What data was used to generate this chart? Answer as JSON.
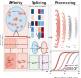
{
  "panel_titles": [
    "Affinity",
    "Splicing",
    "Processing"
  ],
  "title_fontsize": 2.5,
  "bg_left": "#fce8e3",
  "bg_mid": "#f7f7f7",
  "bg_right_top": "#e0f0f8",
  "speckle_fill": "#c5e3f5",
  "speckle_edge": "#90c0e0",
  "salmon": "#e88070",
  "dark_salmon": "#c05040",
  "light_salmon": "#f0b0a0",
  "gray_dark": "#666666",
  "gray_light": "#aaaaaa",
  "arrow_gray": "#888888",
  "curve1_color": "#c04030",
  "curve2_color": "#e09080",
  "curve3_color": "#909090",
  "curve4_color": "#b8b8b8",
  "funnel_colors": [
    "#d04030",
    "#e07060",
    "#909090",
    "#c0c0c0"
  ],
  "box_pink": "#f5c0b0",
  "box_edge": "#cc8888",
  "box_gray": "#e0e0e0",
  "box_gray_edge": "#aaaaaa",
  "grid_colors": [
    "#e0e0e0",
    "#c8d8e8",
    "#f0c8c0"
  ],
  "xlabel_right": "Transcription time (AU)",
  "ylabel_right": "Splicing efficiency",
  "ylabel_left": "Spliceosome\nconcentration"
}
